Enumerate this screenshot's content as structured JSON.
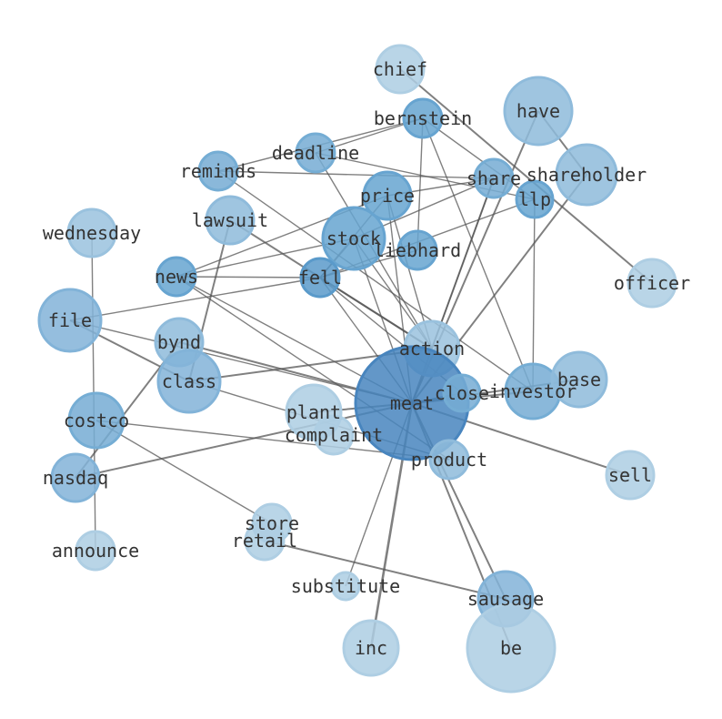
{
  "nodes": [
    {
      "id": "chief",
      "label": "chief",
      "weight": 2,
      "shade": "#b3d4ea"
    },
    {
      "id": "bernstein",
      "label": "bernstein",
      "weight": 3,
      "shade": "#6aa9d6"
    },
    {
      "id": "have",
      "label": "have",
      "weight": 4,
      "shade": "#93c1e2"
    },
    {
      "id": "deadline",
      "label": "deadline",
      "weight": 3,
      "shade": "#79b2db"
    },
    {
      "id": "reminds",
      "label": "reminds",
      "weight": 3,
      "shade": "#79b2db"
    },
    {
      "id": "share",
      "label": "share",
      "weight": 3,
      "shade": "#79b2db"
    },
    {
      "id": "shareholder",
      "label": "shareholder",
      "weight": 4,
      "shade": "#93c1e2"
    },
    {
      "id": "llp",
      "label": "llp",
      "weight": 3,
      "shade": "#6aa9d6"
    },
    {
      "id": "price",
      "label": "price",
      "weight": 3,
      "shade": "#6aa9d6"
    },
    {
      "id": "lawsuit",
      "label": "lawsuit",
      "weight": 3,
      "shade": "#93c1e2"
    },
    {
      "id": "wednesday",
      "label": "wednesday",
      "weight": 3,
      "shade": "#9fc8e5"
    },
    {
      "id": "stock",
      "label": "stock",
      "weight": 4,
      "shade": "#6aa9d6"
    },
    {
      "id": "liebhard",
      "label": "liebhard",
      "weight": 3,
      "shade": "#6aa9d6"
    },
    {
      "id": "news",
      "label": "news",
      "weight": 3,
      "shade": "#6aa9d6"
    },
    {
      "id": "fell",
      "label": "fell",
      "weight": 3,
      "shade": "#5d9fd0"
    },
    {
      "id": "officer",
      "label": "officer",
      "weight": 2,
      "shade": "#b3d4ea"
    },
    {
      "id": "file",
      "label": "file",
      "weight": 4,
      "shade": "#86b9df"
    },
    {
      "id": "action",
      "label": "action",
      "weight": 3,
      "shade": "#9fc8e5"
    },
    {
      "id": "bynd",
      "label": "bynd",
      "weight": 3,
      "shade": "#93c1e2"
    },
    {
      "id": "class",
      "label": "class",
      "weight": 4,
      "shade": "#86b9df"
    },
    {
      "id": "meat",
      "label": "meat",
      "weight": 8,
      "shade": "#4a89c4"
    },
    {
      "id": "close",
      "label": "close",
      "weight": 3,
      "shade": "#79b2db"
    },
    {
      "id": "investor",
      "label": "investor",
      "weight": 4,
      "shade": "#79b2db"
    },
    {
      "id": "base",
      "label": "base",
      "weight": 4,
      "shade": "#93c1e2"
    },
    {
      "id": "plant",
      "label": "plant",
      "weight": 3,
      "shade": "#b3d4ea"
    },
    {
      "id": "complaint",
      "label": "complaint",
      "weight": 3,
      "shade": "#b3d4ea"
    },
    {
      "id": "costco",
      "label": "costco",
      "weight": 4,
      "shade": "#79b2db"
    },
    {
      "id": "product",
      "label": "product",
      "weight": 3,
      "shade": "#93c1e2"
    },
    {
      "id": "sell",
      "label": "sell",
      "weight": 3,
      "shade": "#b3d4ea"
    },
    {
      "id": "nasdaq",
      "label": "nasdaq",
      "weight": 3,
      "shade": "#86b9df"
    },
    {
      "id": "store",
      "label": "store",
      "weight": 3,
      "shade": "#b3d4ea"
    },
    {
      "id": "retail",
      "label": "retail",
      "weight": 3,
      "shade": "#b3d4ea"
    },
    {
      "id": "announce",
      "label": "announce",
      "weight": 3,
      "shade": "#b3d4ea"
    },
    {
      "id": "substitute",
      "label": "substitute",
      "weight": 2,
      "shade": "#b3d4ea"
    },
    {
      "id": "sausage",
      "label": "sausage",
      "weight": 4,
      "shade": "#86b9df"
    },
    {
      "id": "inc",
      "label": "inc",
      "weight": 4,
      "shade": "#b3d4ea"
    },
    {
      "id": "be",
      "label": "be",
      "weight": 6,
      "shade": "#b3d4ea"
    }
  ],
  "edges": [
    [
      "chief",
      "officer",
      2
    ],
    [
      "have",
      "meat",
      2
    ],
    [
      "have",
      "shareholder",
      2
    ],
    [
      "shareholder",
      "meat",
      2
    ],
    [
      "bernstein",
      "deadline",
      1
    ],
    [
      "bernstein",
      "reminds",
      1
    ],
    [
      "bernstein",
      "llp",
      1
    ],
    [
      "bernstein",
      "liebhard",
      1
    ],
    [
      "bernstein",
      "investor",
      1
    ],
    [
      "deadline",
      "llp",
      1
    ],
    [
      "deadline",
      "action",
      1
    ],
    [
      "reminds",
      "share",
      1
    ],
    [
      "reminds",
      "investor",
      1
    ],
    [
      "price",
      "news",
      1
    ],
    [
      "price",
      "share",
      1
    ],
    [
      "price",
      "meat",
      1
    ],
    [
      "price",
      "action",
      1
    ],
    [
      "price",
      "fell",
      1
    ],
    [
      "stock",
      "news",
      1
    ],
    [
      "stock",
      "share",
      1
    ],
    [
      "stock",
      "fell",
      1
    ],
    [
      "stock",
      "meat",
      1
    ],
    [
      "stock",
      "action",
      1
    ],
    [
      "liebhard",
      "fell",
      1
    ],
    [
      "llp",
      "fell",
      1
    ],
    [
      "llp",
      "investor",
      1
    ],
    [
      "lawsuit",
      "class",
      2
    ],
    [
      "lawsuit",
      "action",
      2
    ],
    [
      "news",
      "fell",
      1
    ],
    [
      "news",
      "meat",
      1
    ],
    [
      "news",
      "product",
      1
    ],
    [
      "file",
      "fell",
      1
    ],
    [
      "file",
      "class",
      2
    ],
    [
      "file",
      "meat",
      1
    ],
    [
      "fell",
      "meat",
      1
    ],
    [
      "fell",
      "action",
      2
    ],
    [
      "fell",
      "close",
      1
    ],
    [
      "wednesday",
      "announce",
      1
    ],
    [
      "bynd",
      "nasdaq",
      2
    ],
    [
      "bynd",
      "meat",
      2
    ],
    [
      "class",
      "action",
      2
    ],
    [
      "class",
      "product",
      1
    ],
    [
      "costco",
      "product",
      1
    ],
    [
      "costco",
      "store",
      1
    ],
    [
      "nasdaq",
      "meat",
      2
    ],
    [
      "plant",
      "meat",
      2
    ],
    [
      "retail",
      "sausage",
      2
    ],
    [
      "substitute",
      "meat",
      1
    ],
    [
      "inc",
      "meat",
      3
    ],
    [
      "sausage",
      "meat",
      2
    ],
    [
      "be",
      "meat",
      2
    ],
    [
      "sell",
      "meat",
      2
    ],
    [
      "investor",
      "meat",
      2
    ],
    [
      "base",
      "meat",
      2
    ],
    [
      "share",
      "action",
      1
    ],
    [
      "share",
      "meat",
      2
    ],
    [
      "close",
      "meat",
      2
    ]
  ]
}
